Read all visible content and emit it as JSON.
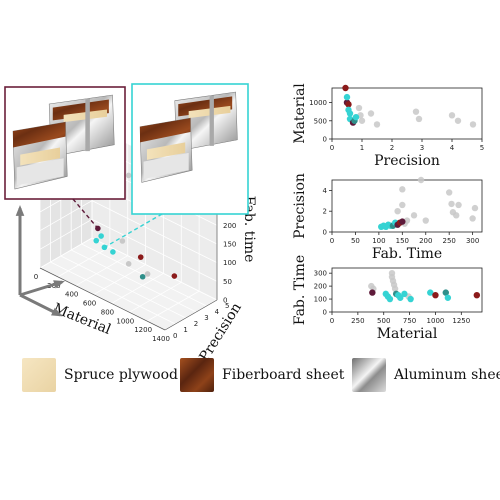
{
  "colors": {
    "maroon": "#5e1a3a",
    "darkred": "#8b1a1a",
    "cyan": "#35d3d3",
    "teal": "#2f8f8a",
    "gray": "#c8c8c8",
    "frame_maroon": "#6b1f3a",
    "frame_cyan": "#35d3d3",
    "plywood": "#f0dcb0",
    "fiberboard": "#7a3a1a",
    "aluminum": "#9a9a9a"
  },
  "legend": [
    {
      "label": "Spruce plywood",
      "icon": "plywood-swatch"
    },
    {
      "label": "Fiberboard sheet",
      "icon": "fiberboard-swatch"
    },
    {
      "label": "Aluminum sheet",
      "icon": "aluminum-swatch"
    }
  ],
  "chart_data": [
    {
      "type": "scatter",
      "subtype": "3d",
      "xlabel": "Material",
      "ylabel": "Precision",
      "zlabel": "Fab. time",
      "xticks": [
        0,
        200,
        400,
        600,
        800,
        1000,
        1200,
        1400
      ],
      "yticks": [
        0,
        1,
        2,
        3,
        4,
        5
      ],
      "zticks": [
        0,
        50,
        100,
        150,
        200,
        250,
        300
      ],
      "xlim": [
        0,
        1400
      ],
      "ylim": [
        0,
        5
      ],
      "zlim": [
        0,
        300
      ],
      "grid": true,
      "points": [
        {
          "x": 520,
          "y": 1.1,
          "z": 150,
          "c": "maroon"
        },
        {
          "x": 560,
          "y": 0.6,
          "z": 130,
          "c": "cyan"
        },
        {
          "x": 580,
          "y": 0.9,
          "z": 140,
          "c": "cyan"
        },
        {
          "x": 640,
          "y": 0.7,
          "z": 120,
          "c": "cyan"
        },
        {
          "x": 700,
          "y": 1.0,
          "z": 110,
          "c": "cyan"
        },
        {
          "x": 900,
          "y": 0.8,
          "z": 105,
          "c": "gray"
        },
        {
          "x": 1000,
          "y": 1.1,
          "z": 130,
          "c": "darkred"
        },
        {
          "x": 1080,
          "y": 0.6,
          "z": 95,
          "c": "teal"
        },
        {
          "x": 1100,
          "y": 0.9,
          "z": 100,
          "c": "gray"
        },
        {
          "x": 1400,
          "y": 0.9,
          "z": 130,
          "c": "darkred"
        },
        {
          "x": 560,
          "y": 2.0,
          "z": 250,
          "c": "gray"
        },
        {
          "x": 620,
          "y": 3.2,
          "z": 270,
          "c": "gray"
        },
        {
          "x": 760,
          "y": 1.4,
          "z": 140,
          "c": "gray"
        }
      ],
      "annotations": [
        {
          "kind": "design-inset",
          "frame": "frame_maroon",
          "target_point": 0
        },
        {
          "kind": "design-inset",
          "frame": "frame_cyan",
          "target_point": 3
        }
      ]
    },
    {
      "type": "scatter",
      "xlabel": "Precision",
      "ylabel": "Material",
      "xlim": [
        0,
        5
      ],
      "ylim": [
        0,
        1400
      ],
      "xticks": [
        0,
        1,
        2,
        3,
        4,
        5
      ],
      "yticks": [
        0,
        500,
        1000
      ],
      "points": [
        {
          "x": 0.45,
          "y": 1400,
          "c": "darkred"
        },
        {
          "x": 0.5,
          "y": 1000,
          "c": "maroon"
        },
        {
          "x": 0.55,
          "y": 950,
          "c": "darkred"
        },
        {
          "x": 0.5,
          "y": 1150,
          "c": "cyan"
        },
        {
          "x": 0.55,
          "y": 800,
          "c": "cyan"
        },
        {
          "x": 0.6,
          "y": 700,
          "c": "cyan"
        },
        {
          "x": 0.6,
          "y": 550,
          "c": "cyan"
        },
        {
          "x": 0.7,
          "y": 450,
          "c": "maroon"
        },
        {
          "x": 0.75,
          "y": 500,
          "c": "teal"
        },
        {
          "x": 0.8,
          "y": 600,
          "c": "cyan"
        },
        {
          "x": 0.9,
          "y": 850,
          "c": "gray"
        },
        {
          "x": 0.95,
          "y": 650,
          "c": "gray"
        },
        {
          "x": 1.0,
          "y": 500,
          "c": "gray"
        },
        {
          "x": 1.3,
          "y": 700,
          "c": "gray"
        },
        {
          "x": 1.5,
          "y": 400,
          "c": "gray"
        },
        {
          "x": 2.8,
          "y": 750,
          "c": "gray"
        },
        {
          "x": 2.9,
          "y": 550,
          "c": "gray"
        },
        {
          "x": 4.0,
          "y": 650,
          "c": "gray"
        },
        {
          "x": 4.2,
          "y": 500,
          "c": "gray"
        },
        {
          "x": 4.7,
          "y": 400,
          "c": "gray"
        }
      ]
    },
    {
      "type": "scatter",
      "xlabel": "Fab. Time",
      "ylabel": "Precision",
      "xlim": [
        0,
        320
      ],
      "ylim": [
        0,
        5
      ],
      "xticks": [
        0,
        50,
        100,
        150,
        200,
        250,
        300
      ],
      "yticks": [
        0,
        2,
        4
      ],
      "points": [
        {
          "x": 105,
          "y": 0.5,
          "c": "cyan"
        },
        {
          "x": 110,
          "y": 0.6,
          "c": "cyan"
        },
        {
          "x": 115,
          "y": 0.5,
          "c": "cyan"
        },
        {
          "x": 120,
          "y": 0.7,
          "c": "cyan"
        },
        {
          "x": 125,
          "y": 0.6,
          "c": "cyan"
        },
        {
          "x": 130,
          "y": 0.6,
          "c": "teal"
        },
        {
          "x": 135,
          "y": 0.9,
          "c": "cyan"
        },
        {
          "x": 140,
          "y": 0.7,
          "c": "maroon"
        },
        {
          "x": 145,
          "y": 0.9,
          "c": "darkred"
        },
        {
          "x": 150,
          "y": 1.0,
          "c": "maroon"
        },
        {
          "x": 155,
          "y": 0.8,
          "c": "gray"
        },
        {
          "x": 160,
          "y": 1.1,
          "c": "gray"
        },
        {
          "x": 140,
          "y": 2.0,
          "c": "gray"
        },
        {
          "x": 150,
          "y": 2.6,
          "c": "gray"
        },
        {
          "x": 175,
          "y": 1.6,
          "c": "gray"
        },
        {
          "x": 150,
          "y": 4.1,
          "c": "gray"
        },
        {
          "x": 190,
          "y": 5.0,
          "c": "gray"
        },
        {
          "x": 200,
          "y": 1.1,
          "c": "gray"
        },
        {
          "x": 250,
          "y": 3.8,
          "c": "gray"
        },
        {
          "x": 255,
          "y": 2.7,
          "c": "gray"
        },
        {
          "x": 258,
          "y": 1.9,
          "c": "gray"
        },
        {
          "x": 265,
          "y": 1.6,
          "c": "gray"
        },
        {
          "x": 270,
          "y": 2.6,
          "c": "gray"
        },
        {
          "x": 300,
          "y": 1.3,
          "c": "gray"
        },
        {
          "x": 305,
          "y": 2.3,
          "c": "gray"
        }
      ]
    },
    {
      "type": "scatter",
      "xlabel": "Material",
      "ylabel": "Fab. Time",
      "xlim": [
        0,
        1450
      ],
      "ylim": [
        0,
        340
      ],
      "xticks": [
        0,
        250,
        500,
        750,
        1000,
        1250
      ],
      "yticks": [
        0,
        100,
        200,
        300
      ],
      "points": [
        {
          "x": 380,
          "y": 200,
          "c": "gray"
        },
        {
          "x": 400,
          "y": 180,
          "c": "gray"
        },
        {
          "x": 390,
          "y": 150,
          "c": "maroon"
        },
        {
          "x": 520,
          "y": 140,
          "c": "cyan"
        },
        {
          "x": 540,
          "y": 120,
          "c": "cyan"
        },
        {
          "x": 560,
          "y": 100,
          "c": "cyan"
        },
        {
          "x": 580,
          "y": 300,
          "c": "gray"
        },
        {
          "x": 580,
          "y": 270,
          "c": "gray"
        },
        {
          "x": 590,
          "y": 240,
          "c": "gray"
        },
        {
          "x": 600,
          "y": 210,
          "c": "gray"
        },
        {
          "x": 610,
          "y": 180,
          "c": "gray"
        },
        {
          "x": 620,
          "y": 140,
          "c": "teal"
        },
        {
          "x": 640,
          "y": 130,
          "c": "cyan"
        },
        {
          "x": 660,
          "y": 110,
          "c": "cyan"
        },
        {
          "x": 700,
          "y": 140,
          "c": "cyan"
        },
        {
          "x": 740,
          "y": 120,
          "c": "gray"
        },
        {
          "x": 760,
          "y": 100,
          "c": "cyan"
        },
        {
          "x": 950,
          "y": 150,
          "c": "cyan"
        },
        {
          "x": 1000,
          "y": 130,
          "c": "darkred"
        },
        {
          "x": 1100,
          "y": 150,
          "c": "teal"
        },
        {
          "x": 1120,
          "y": 110,
          "c": "cyan"
        },
        {
          "x": 1400,
          "y": 130,
          "c": "darkred"
        }
      ]
    }
  ]
}
